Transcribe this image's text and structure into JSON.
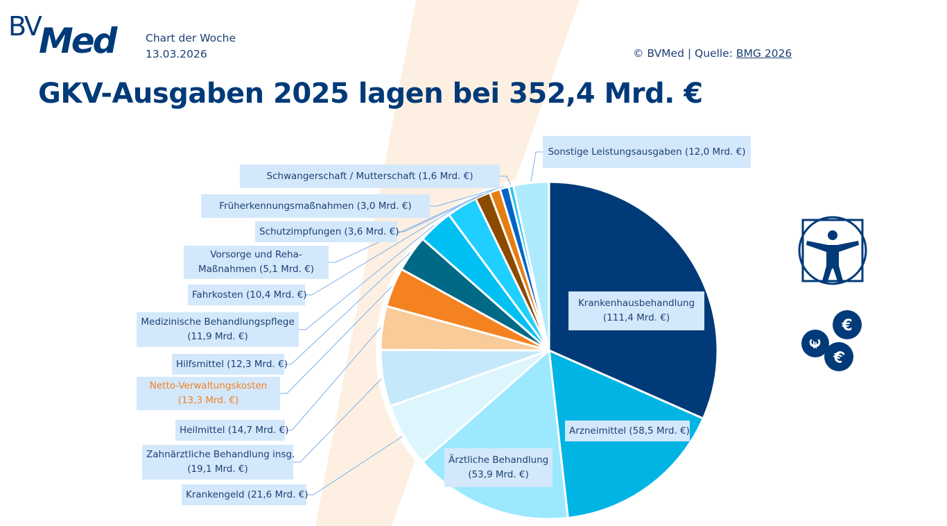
{
  "header": {
    "logo_bv": "BV",
    "logo_med": "Med",
    "subtitle_line1": "Chart der Woche",
    "subtitle_line2": "13.03.2026",
    "credit_prefix": "© BVMed | Quelle: ",
    "credit_link": "BMG 2026"
  },
  "icons": {
    "vitruvian": "vitruvian-man-icon",
    "coins": "euro-coins-icon"
  },
  "colors": {
    "brand_navy": "#003a78",
    "label_bg": "#d4e8fb",
    "stripe": "#fdf0e2",
    "leader_line": "#7ab0ea",
    "highlight_text": "#f08020"
  },
  "chart_data": {
    "type": "pie",
    "title": "GKV-Ausgaben 2025 lagen bei 352,4 Mrd. €",
    "unit": "Mrd. €",
    "total": 352.4,
    "start": "12 o'clock",
    "direction": "clockwise",
    "slices": [
      {
        "name": "Krankenhausbehandlung",
        "value": 111.4,
        "label_l1": "Krankenhausbehandlung",
        "label_l2": "(111,4 Mrd. €)",
        "color": "#003a78"
      },
      {
        "name": "Arzneimittel",
        "value": 58.5,
        "label_l1": "Arzneimittel (58,5 Mrd. €)",
        "label_l2": "",
        "color": "#00b4e4"
      },
      {
        "name": "Ärztliche Behandlung",
        "value": 53.9,
        "label_l1": "Ärztliche Behandlung",
        "label_l2": "(53,9 Mrd. €)",
        "color": "#9be8ff"
      },
      {
        "name": "Krankengeld",
        "value": 21.6,
        "label_l1": "Krankengeld  (21,6 Mrd. €)",
        "label_l2": "",
        "color": "#ddf6fe"
      },
      {
        "name": "Zahnärztliche Behandlung insg.",
        "value": 19.1,
        "label_l1": "Zahnärztliche Behandlung insg.",
        "label_l2": "(19,1 Mrd. €)",
        "color": "#c6e8fb"
      },
      {
        "name": "Heilmittel",
        "value": 14.7,
        "label_l1": "Heilmittel (14,7 Mrd. €)",
        "label_l2": "",
        "color": "#f8cb98"
      },
      {
        "name": "Netto-Verwaltungskosten",
        "value": 13.3,
        "label_l1": "Netto-Verwaltungskosten",
        "label_l2": "(13,3 Mrd. €)",
        "color": "#f58220",
        "highlight": true
      },
      {
        "name": "Hilfsmittel",
        "value": 12.3,
        "label_l1": "Hilfsmittel (12,3 Mrd. €)",
        "label_l2": "",
        "color": "#006985"
      },
      {
        "name": "Medizinische Behandlungspflege",
        "value": 11.9,
        "label_l1": "Medizinische Behandlungspflege",
        "label_l2": "(11,9 Mrd. €)",
        "color": "#00c0f3"
      },
      {
        "name": "Fahrkosten",
        "value": 10.4,
        "label_l1": "Fahrkosten (10,4 Mrd. €)",
        "label_l2": "",
        "color": "#1fcfff"
      },
      {
        "name": "Vorsorge und Reha-Maßnahmen",
        "value": 5.1,
        "label_l1": "Vorsorge und Reha-",
        "label_l2": "Maßnahmen (5,1 Mrd. €)",
        "color": "#8c4a00"
      },
      {
        "name": "Schutzimpfungen",
        "value": 3.6,
        "label_l1": "Schutzimpfungen (3,6 Mrd. €)",
        "label_l2": "",
        "color": "#e57e12"
      },
      {
        "name": "Früherkennungsmaßnahmen",
        "value": 3.0,
        "label_l1": "Früherkennungsmaßnahmen (3,0 Mrd. €)",
        "label_l2": "",
        "color": "#0064c8"
      },
      {
        "name": "Schwangerschaft / Mutterschaft",
        "value": 1.6,
        "label_l1": "Schwangerschaft  / Mutterschaft (1,6 Mrd. €)",
        "label_l2": "",
        "color": "#22c6f6"
      },
      {
        "name": "Sonstige Leistungsausgaben",
        "value": 12.0,
        "label_l1": "Sonstige Leistungsausgaben (12,0 Mrd. €)",
        "label_l2": "",
        "color": "#aeeafd"
      }
    ]
  }
}
